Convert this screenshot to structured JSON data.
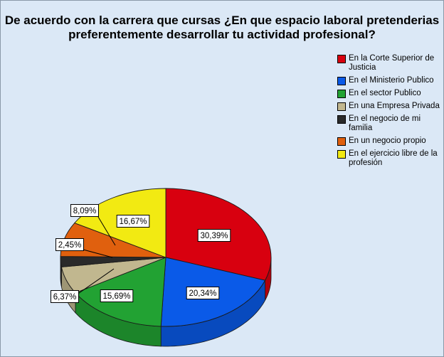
{
  "chart_data": {
    "type": "pie",
    "title": "De acuerdo con la carrera que cursas ¿En que espacio laboral pretenderias preferentemente desarrollar tu actividad profesional?",
    "title_lines": [
      "De acuerdo con la carrera que cursas ¿En que espacio laboral pretenderias",
      "preferentemente desarrollar tu actividad profesional?"
    ],
    "legend_position": "top-right",
    "slices": [
      {
        "label": "En la Corte Superior de Justicia",
        "value": 30.39,
        "value_label": "30,39%",
        "color": "#d8000f"
      },
      {
        "label": "En el Ministerio Publico",
        "value": 20.34,
        "value_label": "20,34%",
        "color": "#0a5ae8"
      },
      {
        "label": "En el sector Publico",
        "value": 15.69,
        "value_label": "15,69%",
        "color": "#22a233"
      },
      {
        "label": "En una Empresa Privada",
        "value": 6.37,
        "value_label": "6,37%",
        "color": "#c1b78f"
      },
      {
        "label": "En el negocio de mi familia",
        "value": 2.45,
        "value_label": "2,45%",
        "color": "#2a2a2a"
      },
      {
        "label": "En un negocio propio",
        "value": 8.09,
        "value_label": "8,09%",
        "color": "#e0600e"
      },
      {
        "label": "En el ejercicio libre de la profesión",
        "value": 16.67,
        "value_label": "16,67%",
        "color": "#f2ea12"
      }
    ]
  }
}
